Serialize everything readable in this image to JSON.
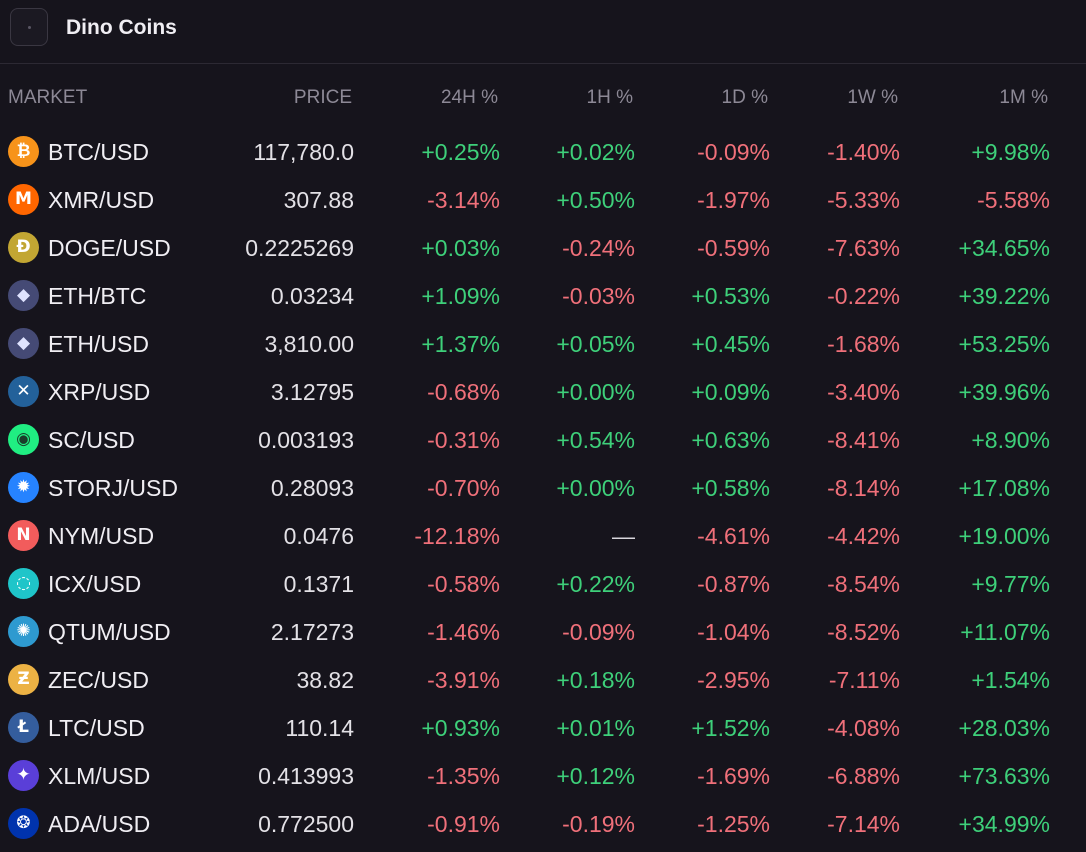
{
  "app": {
    "title": "Dino Coins"
  },
  "columns": {
    "market": "MARKET",
    "price": "PRICE",
    "h24": "24H %",
    "h1": "1H %",
    "d1": "1D %",
    "w1": "1W %",
    "m1": "1M %"
  },
  "colors": {
    "up": "#3ed07a",
    "down": "#f0707a",
    "background": "#16141c"
  },
  "rows": [
    {
      "market": "BTC/USD",
      "icon": "bitcoin-icon",
      "price": "117,780.0",
      "h24": "+0.25%",
      "h1": "+0.02%",
      "d1": "-0.09%",
      "w1": "-1.40%",
      "m1": "+9.98%"
    },
    {
      "market": "XMR/USD",
      "icon": "monero-icon",
      "price": "307.88",
      "h24": "-3.14%",
      "h1": "+0.50%",
      "d1": "-1.97%",
      "w1": "-5.33%",
      "m1": "-5.58%"
    },
    {
      "market": "DOGE/USD",
      "icon": "dogecoin-icon",
      "price": "0.2225269",
      "h24": "+0.03%",
      "h1": "-0.24%",
      "d1": "-0.59%",
      "w1": "-7.63%",
      "m1": "+34.65%"
    },
    {
      "market": "ETH/BTC",
      "icon": "ethereum-icon",
      "price": "0.03234",
      "h24": "+1.09%",
      "h1": "-0.03%",
      "d1": "+0.53%",
      "w1": "-0.22%",
      "m1": "+39.22%"
    },
    {
      "market": "ETH/USD",
      "icon": "ethereum-icon",
      "price": "3,810.00",
      "h24": "+1.37%",
      "h1": "+0.05%",
      "d1": "+0.45%",
      "w1": "-1.68%",
      "m1": "+53.25%"
    },
    {
      "market": "XRP/USD",
      "icon": "xrp-icon",
      "price": "3.12795",
      "h24": "-0.68%",
      "h1": "+0.00%",
      "d1": "+0.09%",
      "w1": "-3.40%",
      "m1": "+39.96%"
    },
    {
      "market": "SC/USD",
      "icon": "siacoin-icon",
      "price": "0.003193",
      "h24": "-0.31%",
      "h1": "+0.54%",
      "d1": "+0.63%",
      "w1": "-8.41%",
      "m1": "+8.90%"
    },
    {
      "market": "STORJ/USD",
      "icon": "storj-icon",
      "price": "0.28093",
      "h24": "-0.70%",
      "h1": "+0.00%",
      "d1": "+0.58%",
      "w1": "-8.14%",
      "m1": "+17.08%"
    },
    {
      "market": "NYM/USD",
      "icon": "nym-icon",
      "price": "0.0476",
      "h24": "-12.18%",
      "h1": "—",
      "d1": "-4.61%",
      "w1": "-4.42%",
      "m1": "+19.00%"
    },
    {
      "market": "ICX/USD",
      "icon": "icon-icx-icon",
      "price": "0.1371",
      "h24": "-0.58%",
      "h1": "+0.22%",
      "d1": "-0.87%",
      "w1": "-8.54%",
      "m1": "+9.77%"
    },
    {
      "market": "QTUM/USD",
      "icon": "qtum-icon",
      "price": "2.17273",
      "h24": "-1.46%",
      "h1": "-0.09%",
      "d1": "-1.04%",
      "w1": "-8.52%",
      "m1": "+11.07%"
    },
    {
      "market": "ZEC/USD",
      "icon": "zcash-icon",
      "price": "38.82",
      "h24": "-3.91%",
      "h1": "+0.18%",
      "d1": "-2.95%",
      "w1": "-7.11%",
      "m1": "+1.54%"
    },
    {
      "market": "LTC/USD",
      "icon": "litecoin-icon",
      "price": "110.14",
      "h24": "+0.93%",
      "h1": "+0.01%",
      "d1": "+1.52%",
      "w1": "-4.08%",
      "m1": "+28.03%"
    },
    {
      "market": "XLM/USD",
      "icon": "stellar-icon",
      "price": "0.413993",
      "h24": "-1.35%",
      "h1": "+0.12%",
      "d1": "-1.69%",
      "w1": "-6.88%",
      "m1": "+73.63%"
    },
    {
      "market": "ADA/USD",
      "icon": "cardano-icon",
      "price": "0.772500",
      "h24": "-0.91%",
      "h1": "-0.19%",
      "d1": "-1.25%",
      "w1": "-7.14%",
      "m1": "+34.99%"
    }
  ]
}
